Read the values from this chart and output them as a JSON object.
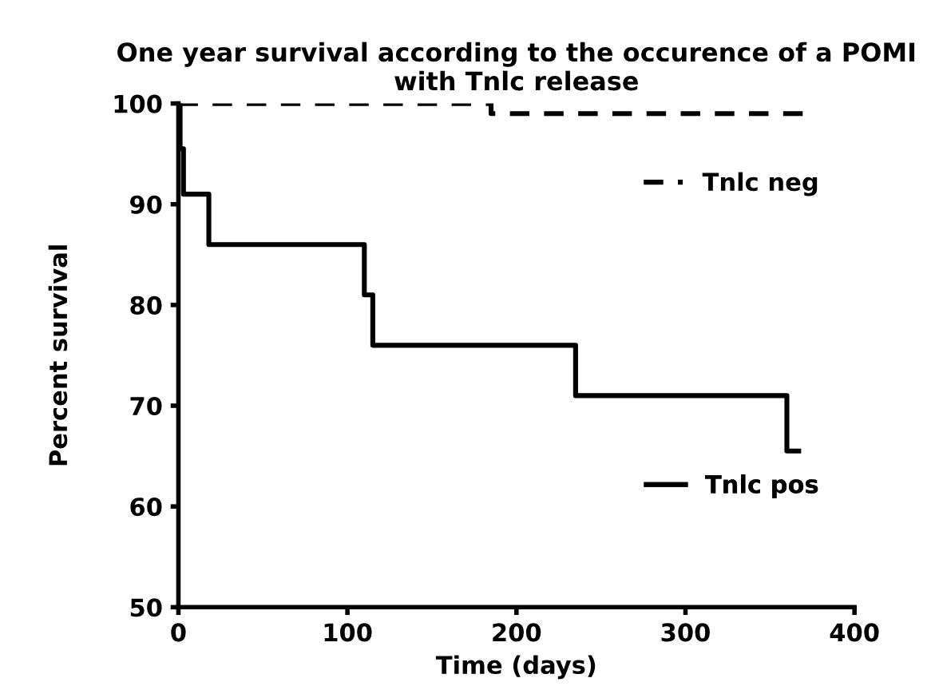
{
  "chart_data": {
    "type": "step",
    "title": "One year survival according to the occurence of a POMI\nwith Tnlc release",
    "xlabel": "Time (days)",
    "ylabel": "Percent survival",
    "series": [
      {
        "name": "Tnlc neg",
        "color": "#000000",
        "line_style": "dashed",
        "x": [
          0,
          185,
          185,
          370
        ],
        "values": [
          100,
          100,
          99,
          99
        ]
      },
      {
        "name": "Tnlc pos",
        "color": "#000000",
        "line_style": "solid",
        "x": [
          0,
          1,
          3,
          18,
          110,
          115,
          235,
          360,
          367
        ],
        "values": [
          100,
          95.5,
          91,
          86,
          81,
          76,
          71,
          65.5,
          65.5
        ]
      }
    ],
    "xlim": [
      0,
      400
    ],
    "xticks": [
      0,
      100,
      200,
      300,
      400
    ],
    "ylim": [
      50,
      100
    ],
    "yticks": [
      50,
      60,
      70,
      80,
      90,
      100
    ],
    "grid": false,
    "legend": "right"
  }
}
